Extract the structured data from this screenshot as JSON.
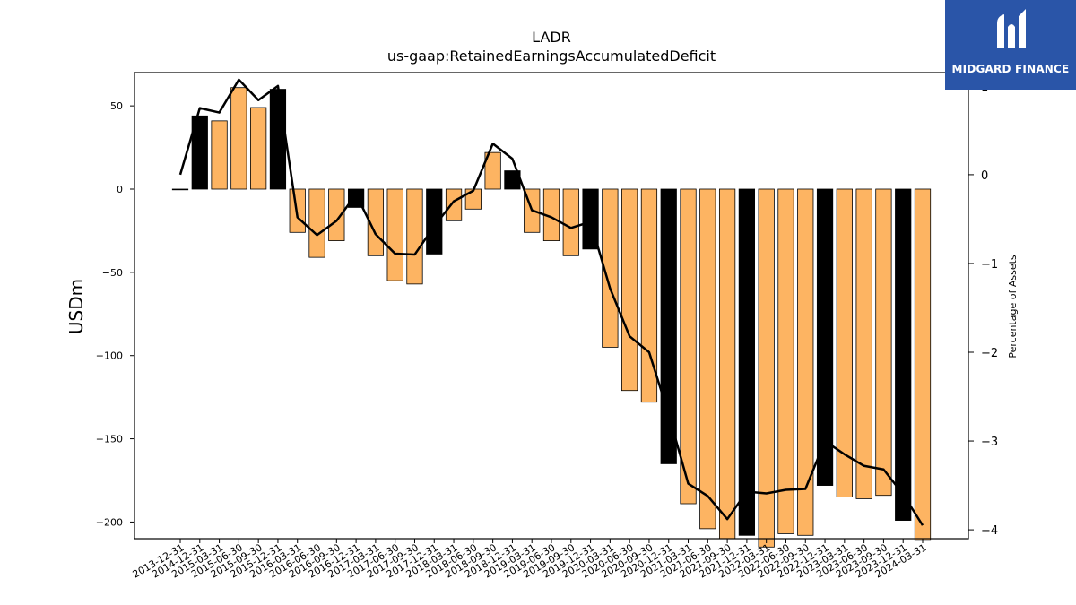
{
  "chart_data": {
    "type": "bar",
    "title": "LADR",
    "subtitle": "us-gaap:RetainedEarningsAccumulatedDeficit",
    "ylabel": "USDm",
    "y2label": "Percentage of Assets",
    "ylim": [
      -210,
      70
    ],
    "y2lim": [
      -4.1,
      1.15
    ],
    "yticks": [
      50,
      0,
      -50,
      -100,
      -150,
      -200
    ],
    "y2ticks": [
      1,
      0,
      -1,
      -2,
      -3,
      -4
    ],
    "categories": [
      "2013-12-31",
      "2014-12-31",
      "2015-03-31",
      "2015-06-30",
      "2015-09-30",
      "2015-12-31",
      "2016-03-31",
      "2016-06-30",
      "2016-09-30",
      "2016-12-31",
      "2017-03-31",
      "2017-06-30",
      "2017-09-30",
      "2017-12-31",
      "2018-03-31",
      "2018-06-30",
      "2018-09-30",
      "2018-12-31",
      "2019-03-31",
      "2019-06-30",
      "2019-09-30",
      "2019-12-31",
      "2020-03-31",
      "2020-06-30",
      "2020-09-30",
      "2020-12-31",
      "2021-03-31",
      "2021-06-30",
      "2021-09-30",
      "2021-12-31",
      "2022-03-31",
      "2022-06-30",
      "2022-09-30",
      "2022-12-31",
      "2023-03-31",
      "2023-06-30",
      "2023-09-30",
      "2023-12-31",
      "2024-03-31"
    ],
    "values": [
      0,
      44,
      41,
      61,
      49,
      60,
      -26,
      -41,
      -31,
      -11,
      -40,
      -55,
      -57,
      -39,
      -19,
      -12,
      22,
      11,
      -26,
      -31,
      -40,
      -36,
      -95,
      -121,
      -128,
      -165,
      -189,
      -204,
      -210,
      -208,
      -215,
      -207,
      -208,
      -178,
      -185,
      -186,
      -184,
      -199,
      -211
    ],
    "year_end": [
      true,
      true,
      false,
      false,
      false,
      true,
      false,
      false,
      false,
      true,
      false,
      false,
      false,
      true,
      false,
      false,
      false,
      true,
      false,
      false,
      false,
      true,
      false,
      false,
      false,
      true,
      false,
      false,
      false,
      true,
      false,
      false,
      false,
      true,
      false,
      false,
      false,
      true,
      false
    ],
    "line_series": {
      "name": "",
      "values": [
        0,
        0.75,
        0.7,
        1.07,
        0.84,
        1.0,
        -0.48,
        -0.68,
        -0.52,
        -0.22,
        -0.67,
        -0.89,
        -0.9,
        -0.58,
        -0.3,
        -0.18,
        0.35,
        0.18,
        -0.4,
        -0.48,
        -0.6,
        -0.53,
        -1.28,
        -1.82,
        -2.0,
        -2.7,
        -3.48,
        -3.62,
        -3.88,
        -3.57,
        -3.59,
        -3.55,
        -3.54,
        -3.0,
        -3.15,
        -3.28,
        -3.32,
        -3.6,
        -3.95
      ]
    },
    "colors": {
      "bar": "#fdb462",
      "bar_year_end": "#000000",
      "line": "#000000",
      "edge": "#000000"
    }
  },
  "logo": {
    "text": "MIDGARD FINANCE",
    "bg": "#2a55a8"
  }
}
